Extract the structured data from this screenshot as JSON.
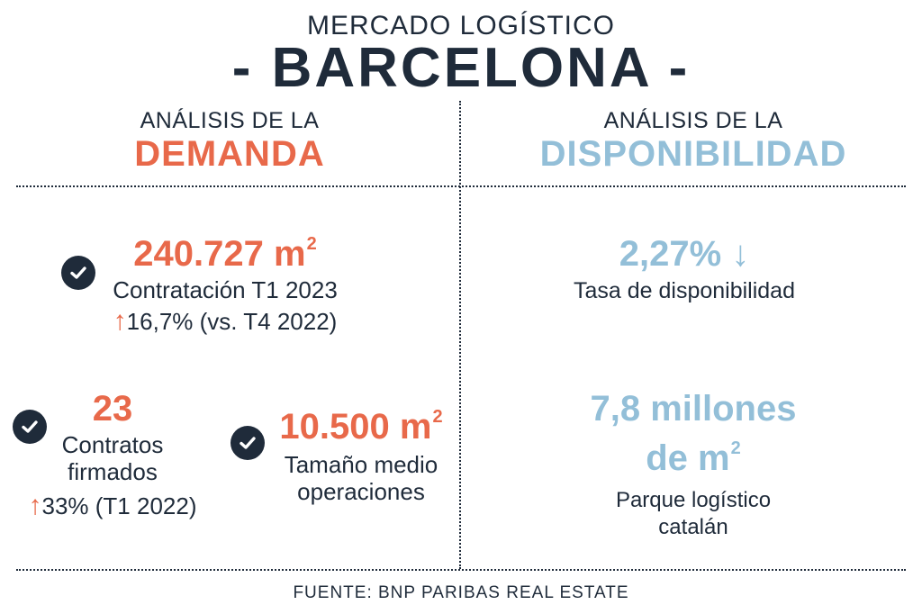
{
  "header": {
    "subtitle": "MERCADO LOGÍSTICO",
    "title": "- BARCELONA -"
  },
  "columns": {
    "left": {
      "line1": "ANÁLISIS DE LA",
      "line2": "DEMANDA"
    },
    "right": {
      "line1": "ANÁLISIS DE LA",
      "line2": "DISPONIBILIDAD"
    }
  },
  "demand": {
    "contratacion": {
      "value": "240.727 m",
      "sup": "2",
      "label": "Contratación T1 2023",
      "change": "16,7% (vs. T4 2022)"
    },
    "contratos": {
      "value": "23",
      "label_line1": "Contratos",
      "label_line2": "firmados",
      "change": "33% (T1 2022)"
    },
    "tamano": {
      "value": "10.500 m",
      "sup": "2",
      "label_line1": "Tamaño medio",
      "label_line2": "operaciones"
    }
  },
  "availability": {
    "tasa": {
      "value": "2,27%",
      "label": "Tasa de disponibilidad"
    },
    "parque": {
      "value_line1": "7,8 millones",
      "value_line2": "de m",
      "sup": "2",
      "label_line1": "Parque logístico",
      "label_line2": "catalán"
    }
  },
  "icons": {
    "check": "check-circle-icon",
    "up": "arrow-up-icon",
    "down": "arrow-down-icon"
  },
  "colors": {
    "dark": "#1f2b3a",
    "orange": "#e8694a",
    "blue": "#93bfd8"
  },
  "footer": {
    "source": "FUENTE: BNP PARIBAS REAL ESTATE"
  }
}
